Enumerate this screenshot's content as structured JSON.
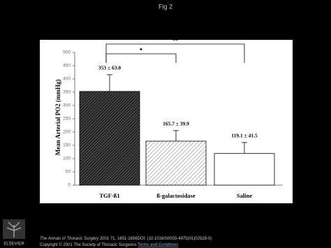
{
  "slide": {
    "title": "Fig 2",
    "footer": {
      "journal": "The Annals of Thoracic Surgery",
      "citation": "2001 71, 1651-1656DOI: (10.1016/S0003-4975(01)02528-0)",
      "copyright": "Copyright © 2001 The Society of Thoracic Surgeons",
      "link": "Terms and Conditions",
      "publisher": "ELSEVIER"
    }
  },
  "chart_data": {
    "type": "bar",
    "ylabel": "Mean Arterial PO2 (mmHg)",
    "categories": [
      "TGF-ß1",
      "ß-galactosidase",
      "Saline"
    ],
    "values": [
      353,
      165.7,
      119.1
    ],
    "errors": [
      63,
      39.9,
      41.5
    ],
    "value_labels": [
      "353 ± 63.0",
      "165.7 ± 39.9",
      "119.1 ± 41.5"
    ],
    "hatch": [
      "dense",
      "sparse",
      "none"
    ],
    "significance": [
      {
        "label": "*",
        "pair": [
          0,
          1
        ]
      },
      {
        "label": "**",
        "pair": [
          0,
          2
        ]
      }
    ],
    "ylim": [
      0,
      500
    ],
    "yticks": [
      0,
      50,
      100,
      150,
      200,
      250,
      300,
      350,
      400,
      450,
      500
    ]
  }
}
